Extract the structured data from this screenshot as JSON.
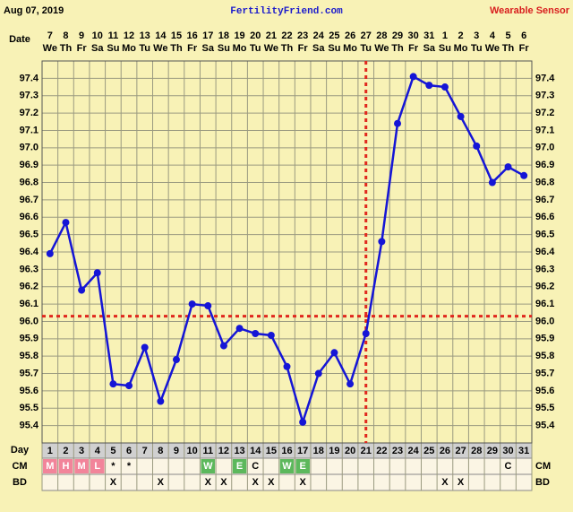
{
  "chart_data": {
    "type": "line",
    "header_date": "Aug 07, 2019",
    "site": "FertilityFriend.com",
    "source": "Wearable Sensor",
    "date_label": "Date",
    "day_label": "Day",
    "cm_label": "CM",
    "bd_label": "BD",
    "dates": [
      "7",
      "8",
      "9",
      "10",
      "11",
      "12",
      "13",
      "14",
      "15",
      "16",
      "17",
      "18",
      "19",
      "20",
      "21",
      "22",
      "23",
      "24",
      "25",
      "26",
      "27",
      "28",
      "29",
      "30",
      "31",
      "1",
      "2",
      "3",
      "4",
      "5",
      "6"
    ],
    "weekdays": [
      "We",
      "Th",
      "Fr",
      "Sa",
      "Su",
      "Mo",
      "Tu",
      "We",
      "Th",
      "Fr",
      "Sa",
      "Su",
      "Mo",
      "Tu",
      "We",
      "Th",
      "Fr",
      "Sa",
      "Su",
      "Mo",
      "Tu",
      "We",
      "Th",
      "Fr",
      "Sa",
      "Su",
      "Mo",
      "Tu",
      "We",
      "Th",
      "Fr"
    ],
    "x": [
      1,
      2,
      3,
      4,
      5,
      6,
      7,
      8,
      9,
      10,
      11,
      12,
      13,
      14,
      15,
      16,
      17,
      18,
      19,
      20,
      21,
      22,
      23,
      24,
      25,
      26,
      27,
      28,
      29,
      30,
      31
    ],
    "xlim": [
      0.5,
      31.5
    ],
    "series": [
      {
        "color": "#1515d6",
        "values": [
          96.39,
          96.57,
          96.18,
          96.28,
          95.64,
          95.63,
          95.85,
          95.54,
          95.78,
          96.1,
          96.09,
          95.86,
          95.96,
          95.93,
          95.92,
          95.74,
          95.42,
          95.7,
          95.82,
          95.64,
          95.93,
          96.46,
          97.14,
          97.41,
          97.36,
          97.35,
          97.18,
          97.01,
          96.8,
          96.89,
          96.84
        ]
      }
    ],
    "ylim": [
      95.3,
      97.5
    ],
    "yticks": [
      95.4,
      95.5,
      95.6,
      95.7,
      95.8,
      95.9,
      {
        "value": 96,
        "label": "96.0"
      },
      96.1,
      96.2,
      96.3,
      96.4,
      96.5,
      96.6,
      96.7,
      96.8,
      96.9,
      {
        "value": 97,
        "label": "97.0"
      },
      97.1,
      97.2,
      97.3,
      97.4
    ],
    "grid": true,
    "coverline": 96.03,
    "ovulation_day": 21,
    "marker_color": "#e0281e",
    "cm": [
      "M",
      "H",
      "M",
      "L",
      "*",
      "*",
      null,
      null,
      null,
      null,
      "W",
      null,
      "E",
      "C",
      null,
      "W",
      "E",
      null,
      null,
      null,
      null,
      null,
      null,
      null,
      null,
      null,
      null,
      null,
      null,
      "C",
      null
    ],
    "cm_colors": {
      "M": "#f2849a",
      "H": "#f2849a",
      "L": "#f2849a",
      "W": "#5cb85c",
      "E": "#5cb85c"
    },
    "bd": [
      null,
      null,
      null,
      null,
      "X",
      null,
      null,
      "X",
      null,
      null,
      "X",
      "X",
      null,
      "X",
      "X",
      null,
      "X",
      null,
      null,
      null,
      null,
      null,
      null,
      null,
      null,
      "X",
      "X",
      null,
      null,
      null,
      null
    ]
  }
}
